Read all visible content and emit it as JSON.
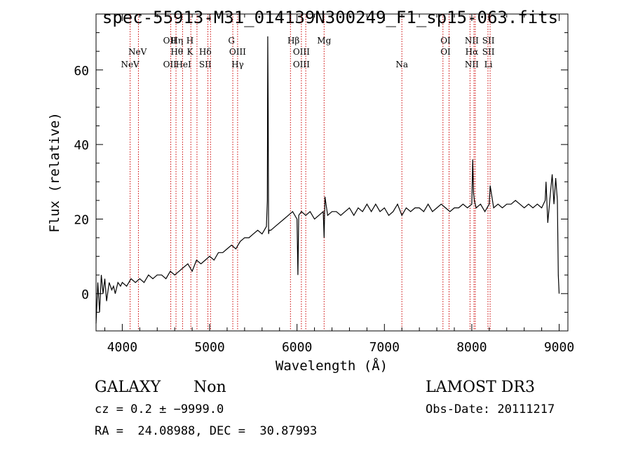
{
  "chart_data": {
    "type": "line",
    "title": "spec-55913-M31_014139N300249_F1_sp15-063.fits",
    "xlabel": "Wavelength (Å)",
    "ylabel": "Flux (relative)",
    "xlim": [
      3700,
      9100
    ],
    "ylim": [
      -10,
      75
    ],
    "xticks": [
      4000,
      5000,
      6000,
      7000,
      8000,
      9000
    ],
    "yticks": [
      0,
      20,
      40,
      60
    ],
    "grid": false,
    "series": [
      {
        "color": "#000000",
        "x": [
          3700,
          3720,
          3740,
          3760,
          3780,
          3800,
          3820,
          3850,
          3880,
          3900,
          3920,
          3950,
          3980,
          4000,
          4050,
          4100,
          4150,
          4200,
          4250,
          4300,
          4350,
          4400,
          4450,
          4500,
          4550,
          4600,
          4650,
          4700,
          4750,
          4800,
          4850,
          4900,
          4950,
          5000,
          5050,
          5100,
          5150,
          5200,
          5250,
          5300,
          5350,
          5400,
          5450,
          5500,
          5550,
          5600,
          5650,
          5660,
          5665,
          5670,
          5675,
          5680,
          5700,
          5750,
          5800,
          5850,
          5900,
          5950,
          6000,
          6010,
          6020,
          6050,
          6100,
          6150,
          6200,
          6250,
          6300,
          6310,
          6320,
          6350,
          6400,
          6450,
          6500,
          6550,
          6600,
          6650,
          6700,
          6750,
          6800,
          6850,
          6900,
          6950,
          7000,
          7050,
          7100,
          7150,
          7200,
          7250,
          7300,
          7350,
          7400,
          7450,
          7500,
          7550,
          7600,
          7650,
          7700,
          7750,
          7800,
          7850,
          7900,
          7950,
          8000,
          8010,
          8020,
          8030,
          8050,
          8100,
          8150,
          8200,
          8210,
          8250,
          8300,
          8350,
          8400,
          8450,
          8500,
          8550,
          8600,
          8650,
          8700,
          8750,
          8800,
          8840,
          8850,
          8870,
          8900,
          8920,
          8940,
          8960,
          8980,
          8990,
          9000
        ],
        "values": [
          -8,
          3,
          -5,
          5,
          0,
          4,
          -2,
          3,
          1,
          2,
          0,
          3,
          2,
          3,
          2,
          4,
          3,
          4,
          3,
          5,
          4,
          5,
          5,
          4,
          6,
          5,
          6,
          7,
          8,
          6,
          9,
          8,
          9,
          10,
          9,
          11,
          11,
          12,
          13,
          12,
          14,
          15,
          15,
          16,
          17,
          16,
          18,
          25,
          69,
          49,
          16,
          17,
          17,
          18,
          19,
          20,
          21,
          22,
          20,
          5,
          21,
          22,
          21,
          22,
          20,
          21,
          22,
          15,
          26,
          21,
          22,
          22,
          21,
          22,
          23,
          21,
          23,
          22,
          24,
          22,
          24,
          22,
          23,
          21,
          22,
          24,
          21,
          23,
          22,
          23,
          23,
          22,
          24,
          22,
          23,
          24,
          23,
          22,
          23,
          23,
          24,
          23,
          24,
          36,
          27,
          25,
          23,
          24,
          22,
          24,
          29,
          23,
          24,
          23,
          24,
          24,
          25,
          24,
          23,
          24,
          23,
          24,
          23,
          25,
          30,
          19,
          27,
          32,
          24,
          31,
          25,
          5,
          0
        ]
      }
    ],
    "lines": [
      {
        "label": "NeV",
        "x": 4090,
        "row": 3
      },
      {
        "label": "NeV",
        "x": 4175,
        "row": 2
      },
      {
        "label": "OII",
        "x": 4545,
        "row": 1
      },
      {
        "label": "OII",
        "x": 4545,
        "row": 3
      },
      {
        "label": "Hη",
        "x": 4625,
        "row": 1
      },
      {
        "label": "Hθ",
        "x": 4625,
        "row": 2
      },
      {
        "label": "HeI",
        "x": 4700,
        "row": 3
      },
      {
        "label": "H",
        "x": 4775,
        "row": 1
      },
      {
        "label": "K",
        "x": 4775,
        "row": 2
      },
      {
        "label": "Hδ",
        "x": 4950,
        "row": 2
      },
      {
        "label": "SII",
        "x": 4950,
        "row": 3
      },
      {
        "label": "G",
        "x": 5250,
        "row": 1
      },
      {
        "label": "OIII",
        "x": 5320,
        "row": 2
      },
      {
        "label": "Hγ",
        "x": 5320,
        "row": 3
      },
      {
        "label": "Hβ",
        "x": 5960,
        "row": 1
      },
      {
        "label": "OIII",
        "x": 6050,
        "row": 2
      },
      {
        "label": "OIII",
        "x": 6050,
        "row": 3
      },
      {
        "label": "Mg",
        "x": 6310,
        "row": 1
      },
      {
        "label": "Na",
        "x": 7200,
        "row": 3
      },
      {
        "label": "OI",
        "x": 7700,
        "row": 1
      },
      {
        "label": "OI",
        "x": 7700,
        "row": 2
      },
      {
        "label": "NII",
        "x": 8000,
        "row": 1
      },
      {
        "label": "Hα",
        "x": 8000,
        "row": 2
      },
      {
        "label": "NII",
        "x": 8000,
        "row": 3
      },
      {
        "label": "SII",
        "x": 8190,
        "row": 1
      },
      {
        "label": "SII",
        "x": 8190,
        "row": 2
      },
      {
        "label": "Li",
        "x": 8190,
        "row": 3
      }
    ],
    "line_positions": [
      4090,
      4185,
      4555,
      4615,
      4690,
      4785,
      4855,
      4980,
      5010,
      5265,
      5320,
      5925,
      6050,
      6100,
      6310,
      7200,
      7670,
      7740,
      7980,
      8025,
      8040,
      8185,
      8210
    ],
    "line_color": "#cc0000"
  },
  "info": {
    "object_class": "GALAXY",
    "subclass": "Non",
    "survey": "LAMOST DR3",
    "cz": "cz = 0.2 ± −9999.0",
    "obs_date": "Obs-Date: 20111217",
    "coords": "RA =  24.08988, DEC =  30.87993"
  }
}
